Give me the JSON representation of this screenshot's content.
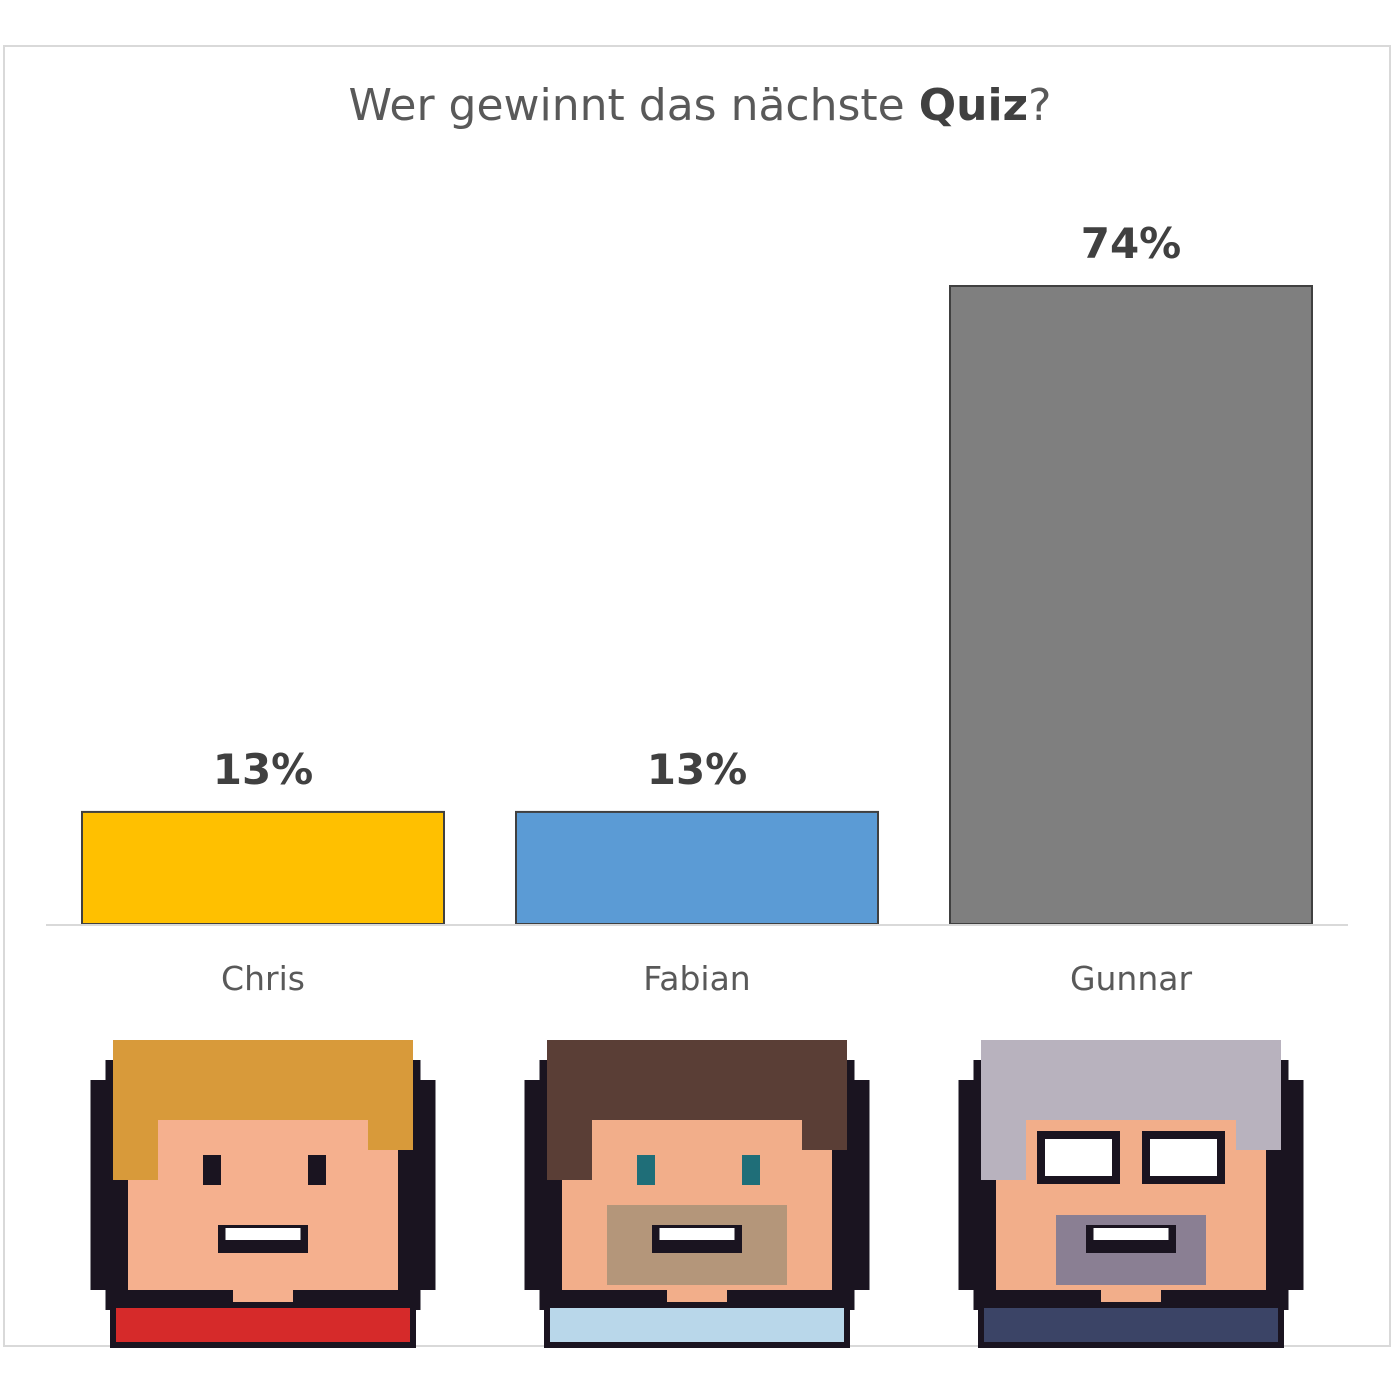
{
  "title": {
    "prefix": "Wer gewinnt das nächste ",
    "bold": "Quiz",
    "suffix": "?"
  },
  "chart_data": {
    "type": "bar",
    "title": "Wer gewinnt das nächste Quiz?",
    "categories": [
      "Chris",
      "Fabian",
      "Gunnar"
    ],
    "values": [
      13,
      13,
      74
    ],
    "value_labels": [
      "13%",
      "13%",
      "74%"
    ],
    "unit": "%",
    "ylim": [
      0,
      74
    ],
    "colors": [
      "#FFC000",
      "#5B9BD5",
      "#7F7F7F"
    ],
    "grid": false,
    "legend": "none",
    "xlabel": "",
    "ylabel": ""
  },
  "avatars": [
    {
      "name": "chris-avatar",
      "hair": "#D89A3A",
      "skin": "#F5B08E",
      "shirt": "#D62A2A"
    },
    {
      "name": "fabian-avatar",
      "hair": "#5A3E36",
      "skin": "#F2AE8A",
      "shirt": "#B9D7EA"
    },
    {
      "name": "gunnar-avatar",
      "hair": "#B8B2BE",
      "skin": "#F2AE8A",
      "shirt": "#3B4466"
    }
  ]
}
